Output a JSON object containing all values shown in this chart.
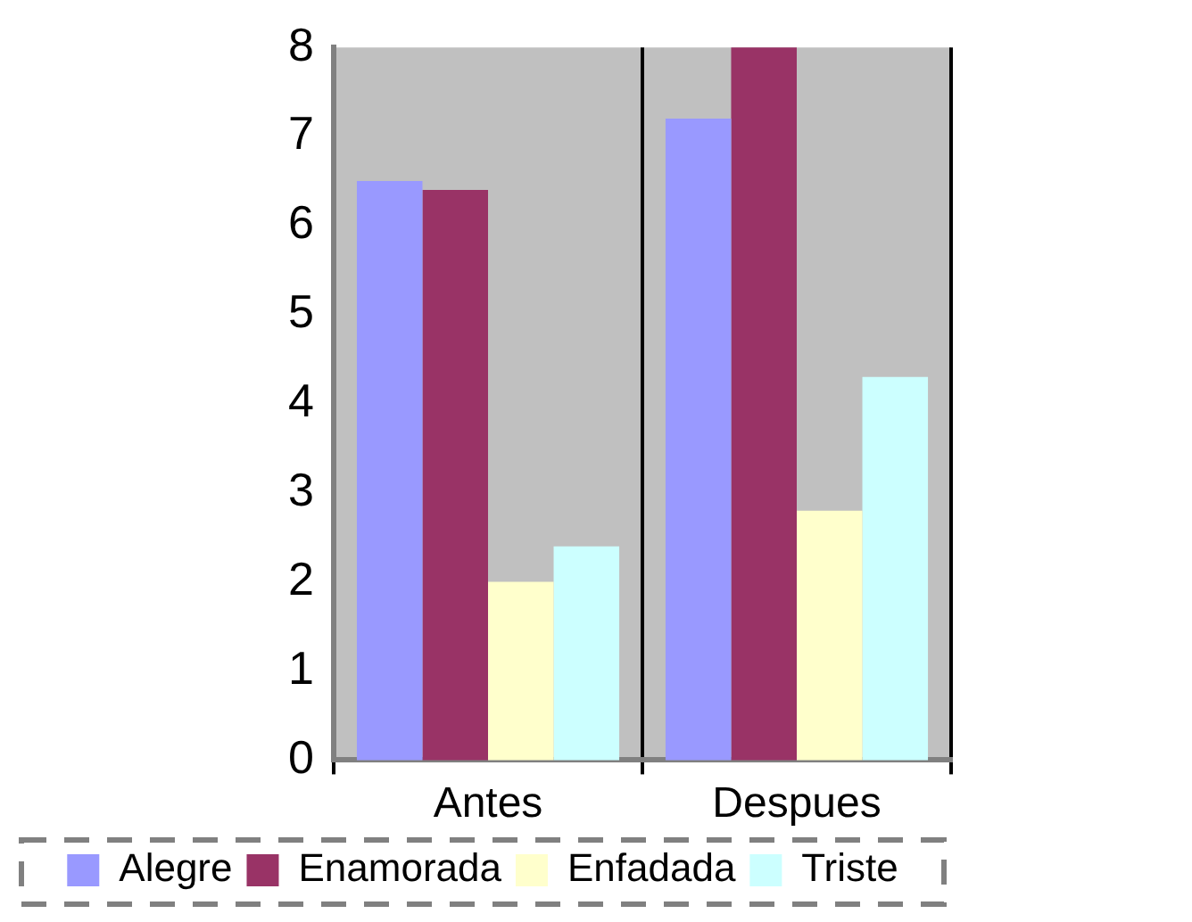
{
  "chart_data": {
    "type": "bar",
    "categories": [
      "Antes",
      "Despues"
    ],
    "series": [
      {
        "name": "Alegre",
        "color": "#9999ff",
        "values": [
          6.5,
          7.2
        ]
      },
      {
        "name": "Enamorada",
        "color": "#993366",
        "values": [
          6.4,
          8.0
        ]
      },
      {
        "name": "Enfadada",
        "color": "#ffffcc",
        "values": [
          2.0,
          2.8
        ]
      },
      {
        "name": "Triste",
        "color": "#ccffff",
        "values": [
          2.4,
          4.3
        ]
      }
    ],
    "ylim": [
      0,
      8
    ],
    "yticks": [
      0,
      1,
      2,
      3,
      4,
      5,
      6,
      7,
      8
    ],
    "grid": "x",
    "legend": "bottom"
  }
}
